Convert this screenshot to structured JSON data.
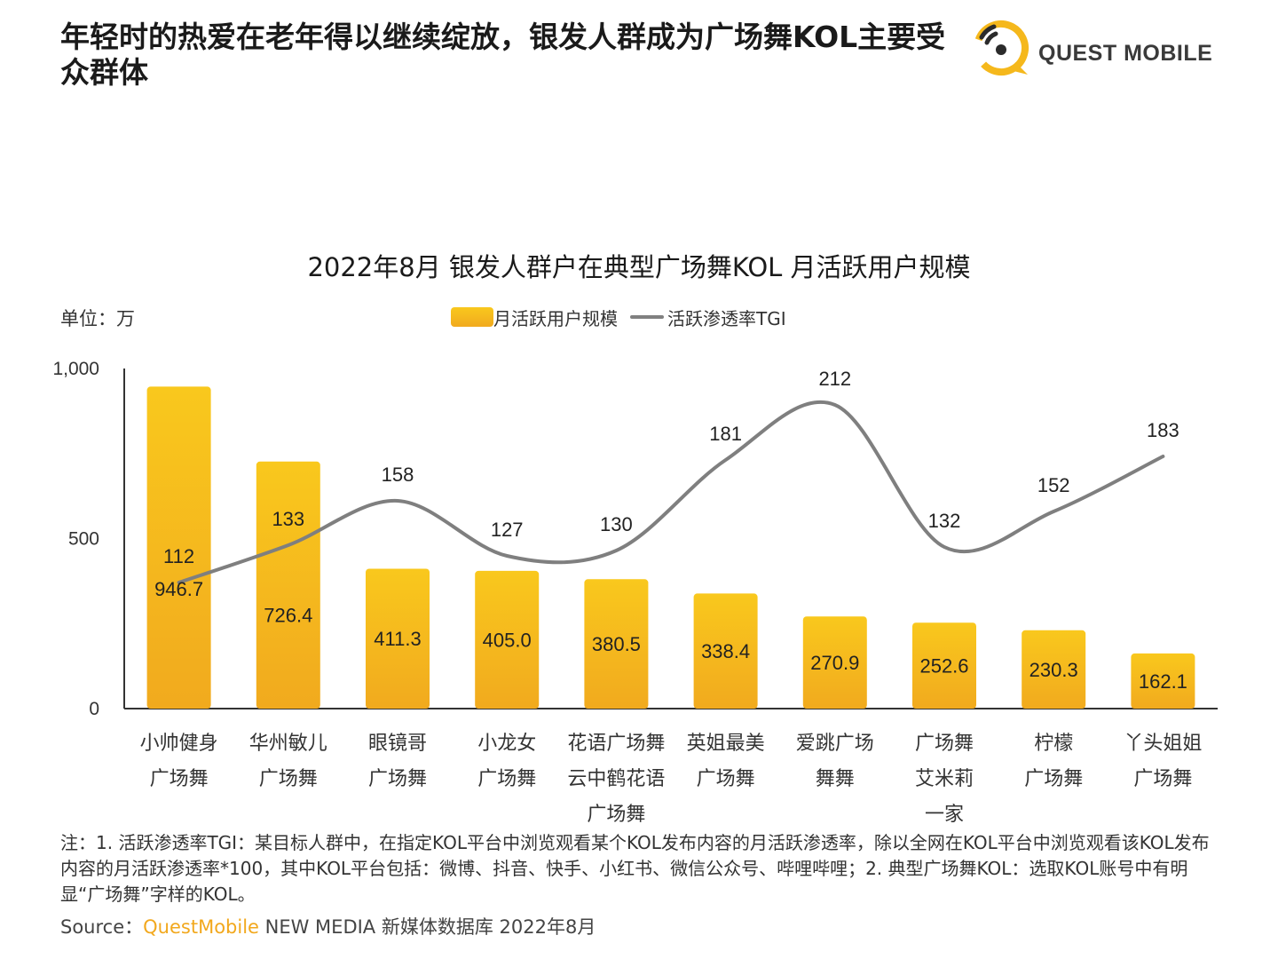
{
  "title": "年轻时的热爱在老年得以继续绽放，银发人群成为广场舞KOL主要受众群体",
  "logo": {
    "text": "QUEST MOBILE"
  },
  "unit_label": "单位：万",
  "legend": {
    "bar": "月活跃用户规模",
    "line": "活跃渗透率TGI"
  },
  "colors": {
    "bar_top": "#f9c81d",
    "bar_bottom": "#f1aa1e",
    "line": "#7f7f7f",
    "axis": "#333333"
  },
  "chart_data": {
    "type": "bar",
    "title": "2022年8月 银发人群户在典型广场舞KOL 月活跃用户规模",
    "ylim": [
      0,
      1000
    ],
    "y_ticks": [
      "0",
      "500",
      "1,000"
    ],
    "y_tick_values": [
      0,
      500,
      1000
    ],
    "categories": [
      [
        "小帅健身",
        "广场舞"
      ],
      [
        "华州敏儿",
        "广场舞"
      ],
      [
        "眼镜哥",
        "广场舞"
      ],
      [
        "小龙女",
        "广场舞"
      ],
      [
        "花语广场舞",
        "云中鹤花语",
        "广场舞"
      ],
      [
        "英姐最美",
        "广场舞"
      ],
      [
        "爱跳广场",
        "舞舞"
      ],
      [
        "广场舞",
        "艾米莉",
        "一家"
      ],
      [
        "柠檬",
        "广场舞"
      ],
      [
        "丫头姐姐",
        "广场舞"
      ]
    ],
    "series": [
      {
        "name": "月活跃用户规模",
        "type": "bar",
        "values": [
          946.7,
          726.4,
          411.3,
          405.0,
          380.5,
          338.4,
          270.9,
          252.6,
          230.3,
          162.1
        ],
        "labels": [
          "946.7",
          "726.4",
          "411.3",
          "405.0",
          "380.5",
          "338.4",
          "270.9",
          "252.6",
          "230.3",
          "162.1"
        ]
      },
      {
        "name": "活跃渗透率TGI",
        "type": "line",
        "values": [
          112,
          133,
          158,
          127,
          130,
          181,
          212,
          132,
          152,
          183
        ],
        "labels": [
          "112",
          "133",
          "158",
          "127",
          "130",
          "181",
          "212",
          "132",
          "152",
          "183"
        ]
      }
    ]
  },
  "note": "注：1. 活跃渗透率TGI：某目标人群中，在指定KOL平台中浏览观看某个KOL发布内容的月活跃渗透率，除以全网在KOL平台中浏览观看该KOL发布内容的月活跃渗透率*100，其中KOL平台包括：微博、抖音、快手、小红书、微信公众号、哔哩哔哩；2. 典型广场舞KOL：选取KOL账号中有明显“广场舞”字样的KOL。",
  "source": {
    "prefix": "Source：",
    "brand": "QuestMobile",
    "rest": " NEW MEDIA 新媒体数据库 2022年8月"
  }
}
